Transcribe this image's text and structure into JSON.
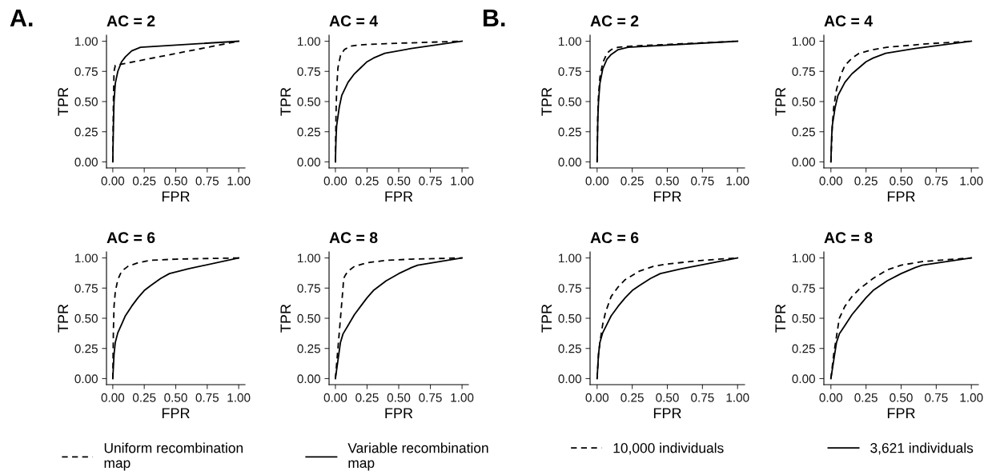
{
  "chart_data": [
    {
      "type": "line",
      "title": "AC = 2",
      "xlabel": "FPR",
      "ylabel": "TPR",
      "annotations": [
        "A."
      ],
      "xlim": [
        -0.05,
        1.05
      ],
      "ylim": [
        -0.05,
        1.05
      ],
      "xticks": [
        {
          "value": 0,
          "label": "0.00"
        },
        {
          "value": 0.25,
          "label": "0.25"
        },
        {
          "value": 0.5,
          "label": "0.50"
        },
        {
          "value": 0.75,
          "label": "0.75"
        },
        {
          "value": 1,
          "label": "1.00"
        }
      ],
      "yticks": [
        {
          "value": 0,
          "label": "0.00"
        },
        {
          "value": 0.25,
          "label": "0.25"
        },
        {
          "value": 0.5,
          "label": "0.50"
        },
        {
          "value": 0.75,
          "label": "0.75"
        },
        {
          "value": 1,
          "label": "1.00"
        }
      ],
      "grid": false,
      "legend": false,
      "marker": "none",
      "series": [
        {
          "color": "#000000",
          "line_style": "dashed",
          "x": [
            0,
            0.005,
            0.01,
            0.02,
            1
          ],
          "values": [
            0,
            0.5,
            0.75,
            0.8,
            1
          ]
        },
        {
          "color": "#000000",
          "line_style": "solid",
          "x": [
            0,
            0.005,
            0.01,
            0.02,
            0.04,
            0.07,
            0.1,
            0.15,
            0.22,
            1
          ],
          "values": [
            0,
            0.3,
            0.5,
            0.65,
            0.75,
            0.83,
            0.87,
            0.92,
            0.95,
            1
          ]
        }
      ]
    },
    {
      "type": "line",
      "title": "AC = 4",
      "xlabel": "FPR",
      "ylabel": "TPR",
      "xlim": [
        -0.05,
        1.05
      ],
      "ylim": [
        -0.05,
        1.05
      ],
      "xticks": [
        {
          "value": 0,
          "label": "0.00"
        },
        {
          "value": 0.25,
          "label": "0.25"
        },
        {
          "value": 0.5,
          "label": "0.50"
        },
        {
          "value": 0.75,
          "label": "0.75"
        },
        {
          "value": 1,
          "label": "1.00"
        }
      ],
      "yticks": [
        {
          "value": 0,
          "label": "0.00"
        },
        {
          "value": 0.25,
          "label": "0.25"
        },
        {
          "value": 0.5,
          "label": "0.50"
        },
        {
          "value": 0.75,
          "label": "0.75"
        },
        {
          "value": 1,
          "label": "1.00"
        }
      ],
      "grid": false,
      "legend": false,
      "marker": "none",
      "series": [
        {
          "color": "#000000",
          "line_style": "dashed",
          "x": [
            0,
            0.005,
            0.01,
            0.02,
            0.04,
            0.07,
            0.12,
            0.2,
            0.4,
            1
          ],
          "values": [
            0,
            0.4,
            0.6,
            0.78,
            0.88,
            0.93,
            0.96,
            0.97,
            0.98,
            1
          ]
        },
        {
          "color": "#000000",
          "line_style": "solid",
          "x": [
            0,
            0.005,
            0.01,
            0.03,
            0.05,
            0.1,
            0.15,
            0.2,
            0.25,
            0.3,
            0.39,
            0.6,
            1
          ],
          "values": [
            0,
            0.2,
            0.3,
            0.45,
            0.55,
            0.66,
            0.73,
            0.78,
            0.83,
            0.86,
            0.9,
            0.94,
            1
          ]
        }
      ]
    },
    {
      "type": "line",
      "title": "AC = 6",
      "xlabel": "FPR",
      "ylabel": "TPR",
      "xlim": [
        -0.05,
        1.05
      ],
      "ylim": [
        -0.05,
        1.05
      ],
      "xticks": [
        {
          "value": 0,
          "label": "0.00"
        },
        {
          "value": 0.25,
          "label": "0.25"
        },
        {
          "value": 0.5,
          "label": "0.50"
        },
        {
          "value": 0.75,
          "label": "0.75"
        },
        {
          "value": 1,
          "label": "1.00"
        }
      ],
      "yticks": [
        {
          "value": 0,
          "label": "0.00"
        },
        {
          "value": 0.25,
          "label": "0.25"
        },
        {
          "value": 0.5,
          "label": "0.50"
        },
        {
          "value": 0.75,
          "label": "0.75"
        },
        {
          "value": 1,
          "label": "1.00"
        }
      ],
      "grid": false,
      "legend": "bottom",
      "marker": "none",
      "series": [
        {
          "name": "Uniform recombination\nmap",
          "color": "#000000",
          "line_style": "dashed",
          "x": [
            0,
            0.005,
            0.01,
            0.02,
            0.04,
            0.07,
            0.12,
            0.2,
            0.3,
            0.5,
            1
          ],
          "values": [
            0,
            0.4,
            0.6,
            0.72,
            0.82,
            0.89,
            0.93,
            0.96,
            0.98,
            0.99,
            1
          ]
        },
        {
          "name": "Variable recombination\nmap",
          "color": "#000000",
          "line_style": "solid",
          "x": [
            0,
            0.01,
            0.02,
            0.04,
            0.07,
            0.1,
            0.15,
            0.2,
            0.25,
            0.3,
            0.38,
            0.45,
            0.6,
            1
          ],
          "values": [
            0,
            0.2,
            0.3,
            0.38,
            0.45,
            0.52,
            0.6,
            0.67,
            0.73,
            0.77,
            0.83,
            0.87,
            0.91,
            1
          ]
        }
      ]
    },
    {
      "type": "line",
      "title": "AC = 8",
      "xlabel": "FPR",
      "ylabel": "TPR",
      "xlim": [
        -0.05,
        1.05
      ],
      "ylim": [
        -0.05,
        1.05
      ],
      "xticks": [
        {
          "value": 0,
          "label": "0.00"
        },
        {
          "value": 0.25,
          "label": "0.25"
        },
        {
          "value": 0.5,
          "label": "0.50"
        },
        {
          "value": 0.75,
          "label": "0.75"
        },
        {
          "value": 1,
          "label": "1.00"
        }
      ],
      "yticks": [
        {
          "value": 0,
          "label": "0.00"
        },
        {
          "value": 0.25,
          "label": "0.25"
        },
        {
          "value": 0.5,
          "label": "0.50"
        },
        {
          "value": 0.75,
          "label": "0.75"
        },
        {
          "value": 1,
          "label": "1.00"
        }
      ],
      "grid": false,
      "legend": false,
      "marker": "none",
      "series": [
        {
          "color": "#000000",
          "line_style": "dashed",
          "x": [
            0,
            0.02,
            0.04,
            0.06,
            0.065,
            0.08,
            0.1,
            0.15,
            0.25,
            0.4,
            0.6,
            1
          ],
          "values": [
            0,
            0.25,
            0.5,
            0.75,
            0.83,
            0.86,
            0.89,
            0.93,
            0.96,
            0.98,
            0.99,
            1
          ]
        },
        {
          "color": "#000000",
          "line_style": "solid",
          "x": [
            0,
            0.02,
            0.04,
            0.06,
            0.1,
            0.15,
            0.2,
            0.25,
            0.3,
            0.4,
            0.5,
            0.6,
            0.65,
            1
          ],
          "values": [
            0,
            0.15,
            0.3,
            0.37,
            0.44,
            0.53,
            0.6,
            0.67,
            0.73,
            0.81,
            0.87,
            0.92,
            0.94,
            1
          ]
        }
      ]
    },
    {
      "type": "line",
      "title": "AC = 2",
      "xlabel": "FPR",
      "ylabel": "TPR",
      "annotations": [
        "B."
      ],
      "xlim": [
        -0.05,
        1.05
      ],
      "ylim": [
        -0.05,
        1.05
      ],
      "xticks": [
        {
          "value": 0,
          "label": "0.00"
        },
        {
          "value": 0.25,
          "label": "0.25"
        },
        {
          "value": 0.5,
          "label": "0.50"
        },
        {
          "value": 0.75,
          "label": "0.75"
        },
        {
          "value": 1,
          "label": "1.00"
        }
      ],
      "yticks": [
        {
          "value": 0,
          "label": "0.00"
        },
        {
          "value": 0.25,
          "label": "0.25"
        },
        {
          "value": 0.5,
          "label": "0.50"
        },
        {
          "value": 0.75,
          "label": "0.75"
        },
        {
          "value": 1,
          "label": "1.00"
        }
      ],
      "grid": false,
      "legend": false,
      "marker": "none",
      "series": [
        {
          "color": "#000000",
          "line_style": "dashed",
          "x": [
            0,
            0.005,
            0.01,
            0.02,
            0.04,
            0.07,
            0.1,
            0.15,
            0.25,
            1
          ],
          "values": [
            0,
            0.4,
            0.55,
            0.7,
            0.82,
            0.9,
            0.93,
            0.95,
            0.96,
            1
          ]
        },
        {
          "color": "#000000",
          "line_style": "solid",
          "x": [
            0,
            0.005,
            0.01,
            0.02,
            0.04,
            0.07,
            0.1,
            0.15,
            0.22,
            1
          ],
          "values": [
            0,
            0.35,
            0.5,
            0.65,
            0.77,
            0.85,
            0.89,
            0.93,
            0.95,
            1
          ]
        }
      ]
    },
    {
      "type": "line",
      "title": "AC = 4",
      "xlabel": "FPR",
      "ylabel": "TPR",
      "xlim": [
        -0.05,
        1.05
      ],
      "ylim": [
        -0.05,
        1.05
      ],
      "xticks": [
        {
          "value": 0,
          "label": "0.00"
        },
        {
          "value": 0.25,
          "label": "0.25"
        },
        {
          "value": 0.5,
          "label": "0.50"
        },
        {
          "value": 0.75,
          "label": "0.75"
        },
        {
          "value": 1,
          "label": "1.00"
        }
      ],
      "yticks": [
        {
          "value": 0,
          "label": "0.00"
        },
        {
          "value": 0.25,
          "label": "0.25"
        },
        {
          "value": 0.5,
          "label": "0.50"
        },
        {
          "value": 0.75,
          "label": "0.75"
        },
        {
          "value": 1,
          "label": "1.00"
        }
      ],
      "grid": false,
      "legend": false,
      "marker": "none",
      "series": [
        {
          "color": "#000000",
          "line_style": "dashed",
          "x": [
            0,
            0.01,
            0.02,
            0.04,
            0.07,
            0.1,
            0.15,
            0.2,
            0.3,
            0.4,
            0.7,
            1
          ],
          "values": [
            0,
            0.3,
            0.45,
            0.6,
            0.72,
            0.8,
            0.86,
            0.9,
            0.93,
            0.95,
            0.98,
            1
          ]
        },
        {
          "color": "#000000",
          "line_style": "solid",
          "x": [
            0,
            0.005,
            0.01,
            0.03,
            0.05,
            0.1,
            0.15,
            0.2,
            0.25,
            0.3,
            0.39,
            0.6,
            1
          ],
          "values": [
            0,
            0.2,
            0.3,
            0.45,
            0.55,
            0.66,
            0.73,
            0.78,
            0.83,
            0.86,
            0.9,
            0.94,
            1
          ]
        }
      ]
    },
    {
      "type": "line",
      "title": "AC = 6",
      "xlabel": "FPR",
      "ylabel": "TPR",
      "xlim": [
        -0.05,
        1.05
      ],
      "ylim": [
        -0.05,
        1.05
      ],
      "xticks": [
        {
          "value": 0,
          "label": "0.00"
        },
        {
          "value": 0.25,
          "label": "0.25"
        },
        {
          "value": 0.5,
          "label": "0.50"
        },
        {
          "value": 0.75,
          "label": "0.75"
        },
        {
          "value": 1,
          "label": "1.00"
        }
      ],
      "yticks": [
        {
          "value": 0,
          "label": "0.00"
        },
        {
          "value": 0.25,
          "label": "0.25"
        },
        {
          "value": 0.5,
          "label": "0.50"
        },
        {
          "value": 0.75,
          "label": "0.75"
        },
        {
          "value": 1,
          "label": "1.00"
        }
      ],
      "grid": false,
      "legend": "bottom",
      "marker": "none",
      "series": [
        {
          "name": "10,000 individuals",
          "color": "#000000",
          "line_style": "dashed",
          "x": [
            0,
            0.01,
            0.02,
            0.04,
            0.06,
            0.1,
            0.15,
            0.2,
            0.3,
            0.4,
            0.5,
            0.75,
            1
          ],
          "values": [
            0,
            0.2,
            0.3,
            0.45,
            0.55,
            0.68,
            0.76,
            0.82,
            0.89,
            0.93,
            0.95,
            0.98,
            1
          ]
        },
        {
          "name": "3,621 individuals",
          "color": "#000000",
          "line_style": "solid",
          "x": [
            0,
            0.01,
            0.02,
            0.04,
            0.07,
            0.1,
            0.15,
            0.2,
            0.25,
            0.3,
            0.38,
            0.45,
            0.6,
            1
          ],
          "values": [
            0,
            0.2,
            0.3,
            0.38,
            0.45,
            0.52,
            0.6,
            0.67,
            0.73,
            0.77,
            0.83,
            0.87,
            0.91,
            1
          ]
        }
      ]
    },
    {
      "type": "line",
      "title": "AC = 8",
      "xlabel": "FPR",
      "ylabel": "TPR",
      "xlim": [
        -0.05,
        1.05
      ],
      "ylim": [
        -0.05,
        1.05
      ],
      "xticks": [
        {
          "value": 0,
          "label": "0.00"
        },
        {
          "value": 0.25,
          "label": "0.25"
        },
        {
          "value": 0.5,
          "label": "0.50"
        },
        {
          "value": 0.75,
          "label": "0.75"
        },
        {
          "value": 1,
          "label": "1.00"
        }
      ],
      "yticks": [
        {
          "value": 0,
          "label": "0.00"
        },
        {
          "value": 0.25,
          "label": "0.25"
        },
        {
          "value": 0.5,
          "label": "0.50"
        },
        {
          "value": 0.75,
          "label": "0.75"
        },
        {
          "value": 1,
          "label": "1.00"
        }
      ],
      "grid": false,
      "legend": false,
      "marker": "none",
      "series": [
        {
          "color": "#000000",
          "line_style": "dashed",
          "x": [
            0,
            0.02,
            0.04,
            0.06,
            0.1,
            0.15,
            0.2,
            0.3,
            0.4,
            0.5,
            0.65,
            1
          ],
          "values": [
            0,
            0.2,
            0.35,
            0.5,
            0.6,
            0.68,
            0.74,
            0.83,
            0.9,
            0.94,
            0.97,
            1
          ]
        },
        {
          "color": "#000000",
          "line_style": "solid",
          "x": [
            0,
            0.02,
            0.04,
            0.06,
            0.1,
            0.15,
            0.2,
            0.25,
            0.3,
            0.4,
            0.5,
            0.6,
            0.65,
            1
          ],
          "values": [
            0,
            0.15,
            0.3,
            0.37,
            0.44,
            0.53,
            0.6,
            0.67,
            0.73,
            0.81,
            0.87,
            0.92,
            0.94,
            1
          ]
        }
      ]
    }
  ]
}
